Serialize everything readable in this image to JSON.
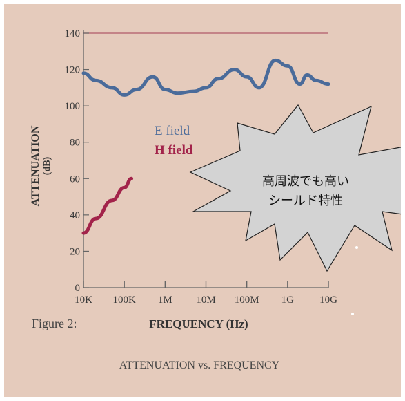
{
  "chart_data": {
    "type": "line",
    "ylabel": "ATTENUATION",
    "yunit": "(dB)",
    "xlabel": "FREQUENCY (Hz)",
    "figure_label": "Figure 2:",
    "caption": "ATTENUATION vs. FREQUENCY",
    "ylim": [
      0,
      140
    ],
    "yticks": [
      0,
      20,
      40,
      60,
      80,
      100,
      120,
      140
    ],
    "x_scale": "log",
    "xticks": [
      {
        "value": 10000,
        "label": "10K"
      },
      {
        "value": 100000,
        "label": "100K"
      },
      {
        "value": 1000000,
        "label": "1M"
      },
      {
        "value": 10000000,
        "label": "10M"
      },
      {
        "value": 100000000,
        "label": "100M"
      },
      {
        "value": 1000000000,
        "label": "1G"
      },
      {
        "value": 10000000000,
        "label": "10G"
      }
    ],
    "grid": false,
    "series": [
      {
        "name": "E field",
        "color": "#4a6b9a",
        "x": [
          10000,
          20000,
          50000,
          100000,
          200000,
          500000,
          1000000,
          2000000,
          5000000,
          10000000,
          20000000,
          50000000,
          100000000,
          200000000,
          500000000,
          1000000000,
          2000000000,
          3000000000,
          5000000000,
          10000000000
        ],
        "y": [
          118,
          114,
          110,
          106,
          109,
          116,
          109,
          107,
          108,
          110,
          115,
          120,
          116,
          110,
          125,
          122,
          112,
          117,
          114,
          112
        ]
      },
      {
        "name": "H field",
        "color": "#a2234a",
        "x": [
          10000,
          20000,
          50000,
          100000,
          150000
        ],
        "y": [
          30,
          38,
          48,
          55,
          60
        ]
      }
    ]
  },
  "callout": {
    "line1": "高周波でも高い",
    "line2": "シールド特性",
    "fill": "#d3d3d3"
  }
}
